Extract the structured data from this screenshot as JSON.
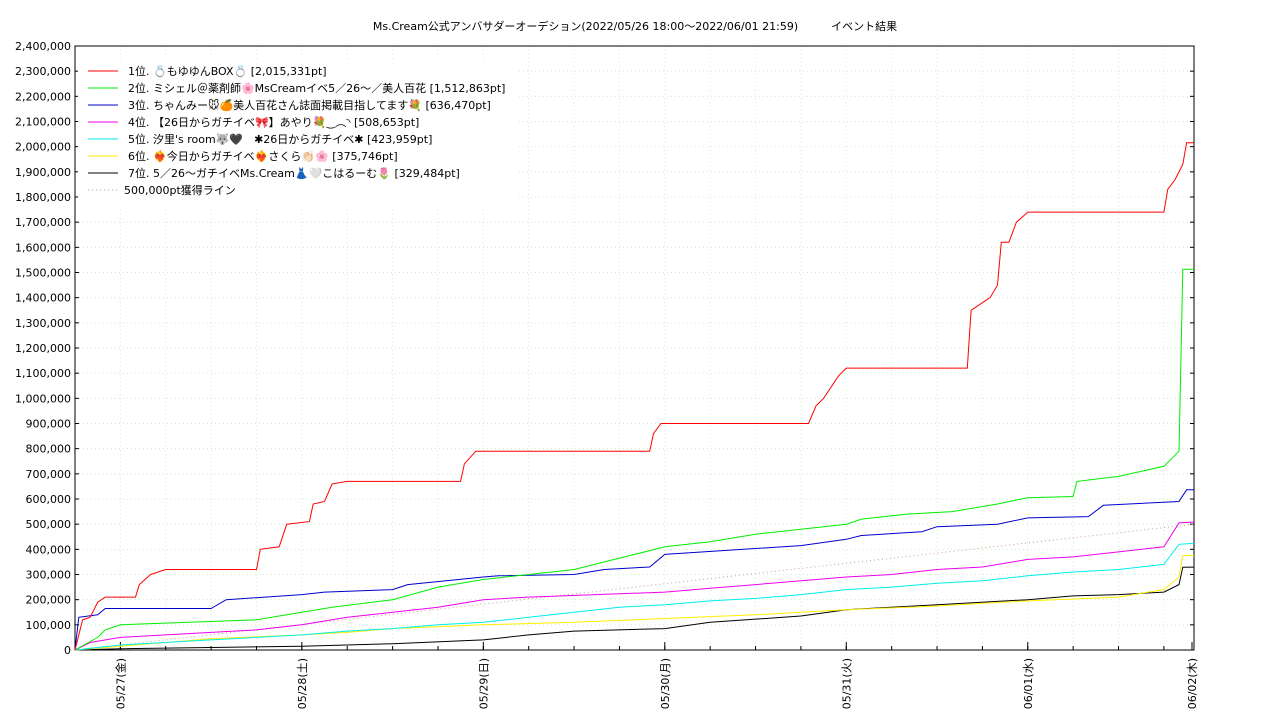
{
  "chart_data": {
    "type": "line",
    "title": "Ms.Cream公式アンバサダーオーデション(2022/05/26 18:00〜2022/06/01 21:59)　　　イベント結果",
    "xlabel": "",
    "ylabel": "",
    "x_range": [
      "2022-05-26 18:00",
      "2022-06-01 21:59"
    ],
    "x_ticks": [
      "05/27(金)",
      "05/28(土)",
      "05/29(日)",
      "05/30(月)",
      "05/31(火)",
      "06/01(水)",
      "06/02(木)"
    ],
    "ylim": [
      0,
      2400000
    ],
    "y_ticks": [
      "0",
      "100,000",
      "200,000",
      "300,000",
      "400,000",
      "500,000",
      "600,000",
      "700,000",
      "800,000",
      "900,000",
      "1,000,000",
      "1,100,000",
      "1,200,000",
      "1,300,000",
      "1,400,000",
      "1,500,000",
      "1,600,000",
      "1,700,000",
      "1,800,000",
      "1,900,000",
      "2,000,000",
      "2,100,000",
      "2,200,000",
      "2,300,000",
      "2,400,000"
    ],
    "grid": true,
    "legend_position": "top-left",
    "series": [
      {
        "name": "1位. 💍もゆゆんBOX💍 [2,015,331pt]",
        "color": "#ff0000",
        "points": [
          [
            "05/26 18:00",
            0
          ],
          [
            "05/26 19:00",
            120000
          ],
          [
            "05/26 20:00",
            130000
          ],
          [
            "05/26 21:00",
            190000
          ],
          [
            "05/26 22:00",
            210000
          ],
          [
            "05/27 02:00",
            210000
          ],
          [
            "05/27 02:30",
            260000
          ],
          [
            "05/27 04:00",
            300000
          ],
          [
            "05/27 06:00",
            320000
          ],
          [
            "05/27 18:00",
            320000
          ],
          [
            "05/27 18:30",
            400000
          ],
          [
            "05/27 21:00",
            410000
          ],
          [
            "05/27 22:00",
            500000
          ],
          [
            "05/28 01:00",
            510000
          ],
          [
            "05/28 01:30",
            580000
          ],
          [
            "05/28 03:00",
            590000
          ],
          [
            "05/28 04:00",
            660000
          ],
          [
            "05/28 06:00",
            670000
          ],
          [
            "05/28 21:00",
            670000
          ],
          [
            "05/28 21:30",
            740000
          ],
          [
            "05/28 23:00",
            790000
          ],
          [
            "05/29 22:00",
            790000
          ],
          [
            "05/29 22:30",
            860000
          ],
          [
            "05/29 23:30",
            900000
          ],
          [
            "05/30 19:00",
            900000
          ],
          [
            "05/30 20:00",
            970000
          ],
          [
            "05/30 21:00",
            1000000
          ],
          [
            "05/30 23:00",
            1090000
          ],
          [
            "05/31 00:00",
            1120000
          ],
          [
            "05/31 16:00",
            1120000
          ],
          [
            "05/31 16:30",
            1350000
          ],
          [
            "05/31 18:00",
            1380000
          ],
          [
            "05/31 19:00",
            1400000
          ],
          [
            "05/31 20:00",
            1450000
          ],
          [
            "05/31 20:30",
            1620000
          ],
          [
            "05/31 21:30",
            1620000
          ],
          [
            "05/31 22:30",
            1700000
          ],
          [
            "06/01 00:00",
            1740000
          ],
          [
            "06/01 18:00",
            1740000
          ],
          [
            "06/01 18:30",
            1830000
          ],
          [
            "06/01 19:30",
            1870000
          ],
          [
            "06/01 20:30",
            1930000
          ],
          [
            "06/01 21:00",
            2015331
          ],
          [
            "06/01 21:59",
            2015331
          ]
        ]
      },
      {
        "name": "2位. ミシェル＠薬剤師🌸MsCreamイベ5／26〜／美人百花 [1,512,863pt]",
        "color": "#00ee00",
        "points": [
          [
            "05/26 18:00",
            0
          ],
          [
            "05/26 21:00",
            50000
          ],
          [
            "05/26 22:00",
            80000
          ],
          [
            "05/27 00:00",
            100000
          ],
          [
            "05/27 18:00",
            120000
          ],
          [
            "05/28 00:00",
            150000
          ],
          [
            "05/28 04:00",
            170000
          ],
          [
            "05/28 12:00",
            200000
          ],
          [
            "05/28 18:00",
            250000
          ],
          [
            "05/29 00:00",
            280000
          ],
          [
            "05/29 06:00",
            300000
          ],
          [
            "05/29 12:00",
            320000
          ],
          [
            "05/29 16:00",
            350000
          ],
          [
            "05/29 20:00",
            380000
          ],
          [
            "05/30 00:00",
            410000
          ],
          [
            "05/30 06:00",
            430000
          ],
          [
            "05/30 12:00",
            460000
          ],
          [
            "05/30 18:00",
            480000
          ],
          [
            "05/31 00:00",
            500000
          ],
          [
            "05/31 02:00",
            520000
          ],
          [
            "05/31 08:00",
            540000
          ],
          [
            "05/31 14:00",
            550000
          ],
          [
            "05/31 20:00",
            580000
          ],
          [
            "06/01 00:00",
            605000
          ],
          [
            "06/01 06:00",
            610000
          ],
          [
            "06/01 06:30",
            670000
          ],
          [
            "06/01 12:00",
            690000
          ],
          [
            "06/01 18:00",
            730000
          ],
          [
            "06/01 20:00",
            790000
          ],
          [
            "06/01 20:30",
            1512863
          ],
          [
            "06/01 21:59",
            1512863
          ]
        ]
      },
      {
        "name": "3位. ちゃんみー🐭🍊美人百花さん誌面掲載目指してます💐 [636,470pt]",
        "color": "#0000cc",
        "points": [
          [
            "05/26 18:00",
            0
          ],
          [
            "05/26 18:30",
            130000
          ],
          [
            "05/26 21:00",
            140000
          ],
          [
            "05/26 22:00",
            165000
          ],
          [
            "05/27 12:00",
            165000
          ],
          [
            "05/27 14:00",
            200000
          ],
          [
            "05/28 00:00",
            220000
          ],
          [
            "05/28 03:00",
            230000
          ],
          [
            "05/28 12:00",
            240000
          ],
          [
            "05/28 14:00",
            260000
          ],
          [
            "05/29 00:00",
            290000
          ],
          [
            "05/29 02:00",
            295000
          ],
          [
            "05/29 12:00",
            300000
          ],
          [
            "05/29 16:00",
            320000
          ],
          [
            "05/29 22:00",
            330000
          ],
          [
            "05/30 00:00",
            380000
          ],
          [
            "05/30 18:00",
            415000
          ],
          [
            "05/31 00:00",
            440000
          ],
          [
            "05/31 02:00",
            455000
          ],
          [
            "05/31 10:00",
            470000
          ],
          [
            "05/31 12:00",
            490000
          ],
          [
            "05/31 20:00",
            500000
          ],
          [
            "06/01 00:00",
            525000
          ],
          [
            "06/01 08:00",
            530000
          ],
          [
            "06/01 10:00",
            575000
          ],
          [
            "06/01 20:00",
            590000
          ],
          [
            "06/01 21:00",
            636470
          ],
          [
            "06/01 21:59",
            636470
          ]
        ]
      },
      {
        "name": "4位. 【26日からガチイベ🎀】あやり💐‿︵◝ [508,653pt]",
        "color": "#ee00ee",
        "points": [
          [
            "05/26 18:00",
            0
          ],
          [
            "05/26 20:00",
            30000
          ],
          [
            "05/27 00:00",
            50000
          ],
          [
            "05/27 06:00",
            60000
          ],
          [
            "05/27 12:00",
            70000
          ],
          [
            "05/27 18:00",
            80000
          ],
          [
            "05/28 00:00",
            100000
          ],
          [
            "05/28 06:00",
            130000
          ],
          [
            "05/28 12:00",
            150000
          ],
          [
            "05/28 18:00",
            170000
          ],
          [
            "05/29 00:00",
            200000
          ],
          [
            "05/29 06:00",
            210000
          ],
          [
            "05/30 00:00",
            230000
          ],
          [
            "05/30 06:00",
            245000
          ],
          [
            "05/30 12:00",
            260000
          ],
          [
            "05/31 00:00",
            290000
          ],
          [
            "05/31 06:00",
            300000
          ],
          [
            "05/31 12:00",
            320000
          ],
          [
            "05/31 18:00",
            330000
          ],
          [
            "06/01 00:00",
            360000
          ],
          [
            "06/01 06:00",
            370000
          ],
          [
            "06/01 12:00",
            390000
          ],
          [
            "06/01 18:00",
            410000
          ],
          [
            "06/01 20:00",
            505000
          ],
          [
            "06/01 21:59",
            508653
          ]
        ]
      },
      {
        "name": "5位. 汐里's room🐺🖤　✱26日からガチイベ✱ [423,959pt]",
        "color": "#00eeee",
        "points": [
          [
            "05/26 18:00",
            0
          ],
          [
            "05/27 00:00",
            20000
          ],
          [
            "05/27 12:00",
            40000
          ],
          [
            "05/28 00:00",
            60000
          ],
          [
            "05/28 06:00",
            75000
          ],
          [
            "05/28 12:00",
            85000
          ],
          [
            "05/28 18:00",
            100000
          ],
          [
            "05/29 00:00",
            110000
          ],
          [
            "05/29 06:00",
            130000
          ],
          [
            "05/29 12:00",
            150000
          ],
          [
            "05/29 18:00",
            170000
          ],
          [
            "05/30 00:00",
            180000
          ],
          [
            "05/30 06:00",
            195000
          ],
          [
            "05/30 12:00",
            205000
          ],
          [
            "05/30 18:00",
            220000
          ],
          [
            "05/31 00:00",
            240000
          ],
          [
            "05/31 06:00",
            250000
          ],
          [
            "05/31 12:00",
            265000
          ],
          [
            "05/31 18:00",
            275000
          ],
          [
            "06/01 00:00",
            295000
          ],
          [
            "06/01 06:00",
            310000
          ],
          [
            "06/01 12:00",
            320000
          ],
          [
            "06/01 18:00",
            340000
          ],
          [
            "06/01 20:00",
            420000
          ],
          [
            "06/01 21:59",
            423959
          ]
        ]
      },
      {
        "name": "6位. ❤️‍🔥今日からガチイベ❤️‍🔥さくら👏🏻🌸 [375,746pt]",
        "color": "#ffee00",
        "points": [
          [
            "05/26 18:00",
            0
          ],
          [
            "05/27 00:00",
            15000
          ],
          [
            "05/27 06:00",
            30000
          ],
          [
            "05/27 12:00",
            45000
          ],
          [
            "05/28 00:00",
            60000
          ],
          [
            "05/28 06:00",
            70000
          ],
          [
            "05/28 12:00",
            85000
          ],
          [
            "05/29 00:00",
            100000
          ],
          [
            "05/29 12:00",
            110000
          ],
          [
            "05/30 00:00",
            125000
          ],
          [
            "05/30 12:00",
            140000
          ],
          [
            "05/30 18:00",
            150000
          ],
          [
            "05/31 00:00",
            160000
          ],
          [
            "05/31 12:00",
            175000
          ],
          [
            "05/31 18:00",
            185000
          ],
          [
            "06/01 00:00",
            195000
          ],
          [
            "06/01 12:00",
            210000
          ],
          [
            "06/01 18:00",
            240000
          ],
          [
            "06/01 20:00",
            290000
          ],
          [
            "06/01 20:30",
            375000
          ],
          [
            "06/01 21:59",
            375746
          ]
        ]
      },
      {
        "name": "7位. 5／26〜ガチイベMs.Cream👗🤍こはるーむ🌷 [329,484pt]",
        "color": "#000000",
        "points": [
          [
            "05/26 18:00",
            0
          ],
          [
            "05/27 00:00",
            5000
          ],
          [
            "05/27 12:00",
            10000
          ],
          [
            "05/28 00:00",
            15000
          ],
          [
            "05/28 12:00",
            25000
          ],
          [
            "05/29 00:00",
            40000
          ],
          [
            "05/29 06:00",
            60000
          ],
          [
            "05/29 12:00",
            75000
          ],
          [
            "05/30 00:00",
            85000
          ],
          [
            "05/30 06:00",
            110000
          ],
          [
            "05/30 18:00",
            135000
          ],
          [
            "05/31 00:00",
            160000
          ],
          [
            "05/31 12:00",
            180000
          ],
          [
            "06/01 00:00",
            200000
          ],
          [
            "06/01 06:00",
            215000
          ],
          [
            "06/01 12:00",
            220000
          ],
          [
            "06/01 18:00",
            230000
          ],
          [
            "06/01 20:00",
            260000
          ],
          [
            "06/01 20:30",
            329000
          ],
          [
            "06/01 21:59",
            329484
          ]
        ]
      },
      {
        "name": "500,000pt獲得ライン",
        "color": "#cc9999",
        "dashed": true,
        "points": [
          [
            "05/26 18:00",
            0
          ],
          [
            "06/01 21:59",
            500000
          ]
        ]
      }
    ]
  }
}
